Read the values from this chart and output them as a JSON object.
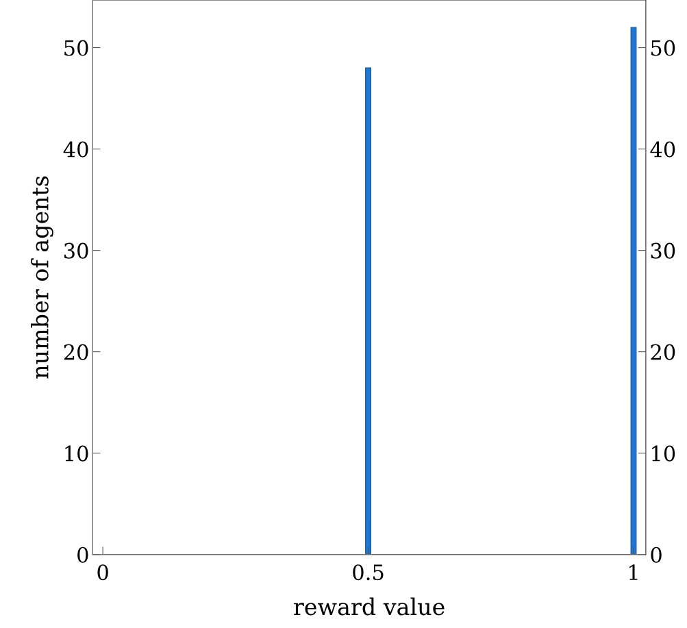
{
  "chart_data": {
    "type": "histogram",
    "xlabel": "reward value",
    "ylabel": "number of agents",
    "bins": [
      0.495,
      0.505,
      0.995,
      1.005
    ],
    "values": [
      48,
      0,
      52
    ],
    "color": "#1f78d8",
    "xlim": [
      -0.019,
      1.023
    ],
    "xticks": [
      0,
      0.5,
      1
    ],
    "ylim": [
      0,
      54.7
    ],
    "yticks": [
      0,
      10,
      20,
      30,
      40,
      50
    ],
    "y2lim": [
      0,
      54.7
    ],
    "y2ticks": [
      0,
      10,
      20,
      30,
      40,
      50
    ]
  }
}
